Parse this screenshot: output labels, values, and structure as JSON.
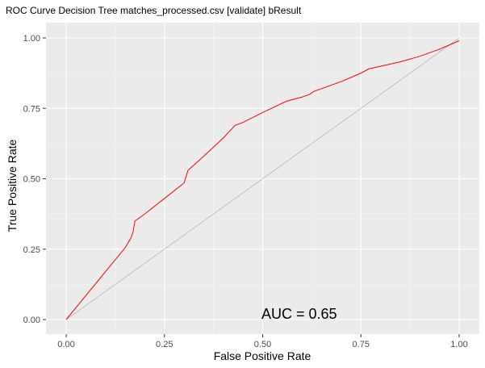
{
  "chart_data": {
    "type": "line",
    "title": "ROC Curve Decision Tree matches_processed.csv [validate] bResult",
    "xlabel": "False Positive Rate",
    "ylabel": "True Positive Rate",
    "xlim": [
      0,
      1
    ],
    "ylim": [
      0,
      1
    ],
    "x_ticks": [
      "0.00",
      "0.25",
      "0.50",
      "0.75",
      "1.00"
    ],
    "y_ticks": [
      "0.00",
      "0.25",
      "0.50",
      "0.75",
      "1.00"
    ],
    "grid": true,
    "legend": "none",
    "annotation": "AUC = 0.65",
    "colors": {
      "panel_background": "#ebebeb",
      "grid_major": "#ffffff",
      "roc_line": "#ff0000",
      "diagonal_line": "#a6a6a6"
    },
    "series": [
      {
        "x": [
          0,
          0.05,
          0.1,
          0.15,
          0.165,
          0.17,
          0.175,
          0.2,
          0.25,
          0.3,
          0.31,
          0.35,
          0.4,
          0.43,
          0.45,
          0.5,
          0.56,
          0.6,
          0.62,
          0.63,
          0.7,
          0.75,
          0.77,
          0.85,
          0.9,
          0.95,
          1.0
        ],
        "y": [
          0,
          0.085,
          0.17,
          0.255,
          0.29,
          0.31,
          0.35,
          0.375,
          0.43,
          0.485,
          0.53,
          0.58,
          0.645,
          0.69,
          0.7,
          0.735,
          0.775,
          0.79,
          0.8,
          0.81,
          0.845,
          0.875,
          0.89,
          0.915,
          0.935,
          0.96,
          0.99
        ]
      },
      {
        "x": [
          0,
          1
        ],
        "y": [
          0,
          1
        ]
      }
    ]
  }
}
